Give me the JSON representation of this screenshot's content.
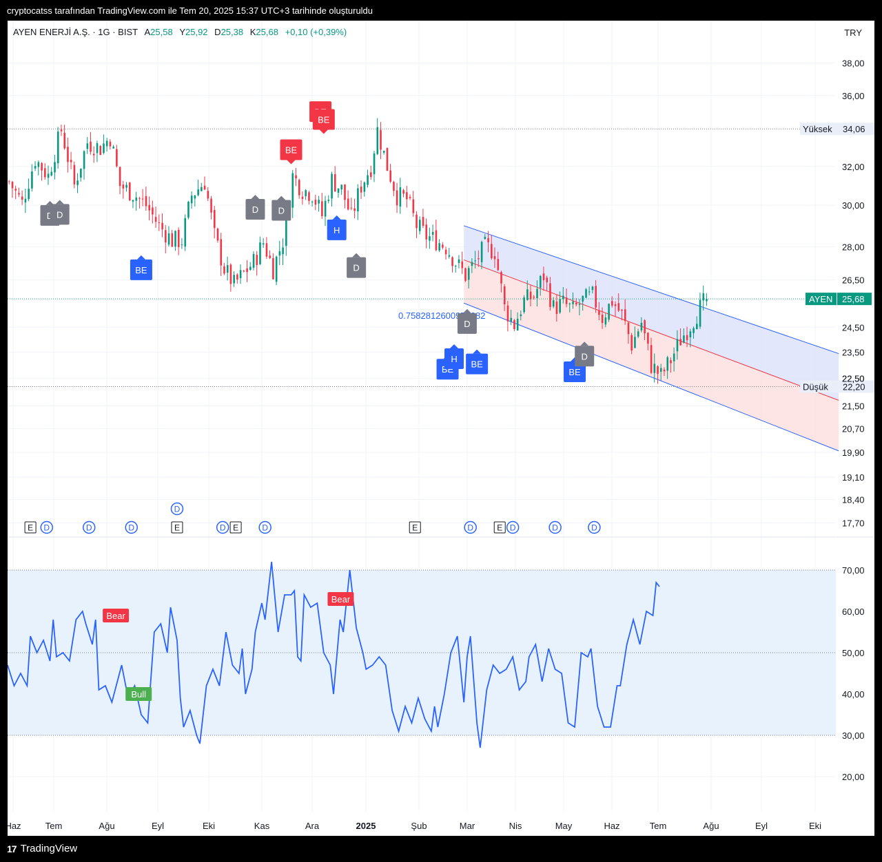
{
  "header": {
    "caption": "cryptocatss tarafından TradingView.com ile Tem 20, 2025 15:37 UTC+3 tarihinde oluşturuldu"
  },
  "legend": {
    "symbol": "AYEN ENERJİ A.Ş. · 1G · BIST",
    "open_label": "A",
    "open_value": "25,58",
    "high_label": "Y",
    "high_value": "25,92",
    "low_label": "D",
    "low_value": "25,38",
    "close_label": "K",
    "close_value": "25,68",
    "change": "+0,10 (+0,39%)"
  },
  "currency": "TRY",
  "footer": {
    "brand": "TradingView",
    "logo": "17"
  },
  "colors": {
    "up": "#089981",
    "down": "#f23645",
    "rsi": "#2962ff",
    "channel_upper_fill": "#dde3fb",
    "channel_lower_fill": "#fde2e2",
    "rsi_band": "#e8f2fd",
    "label_red": "#f23645",
    "label_blue": "#2962ff",
    "label_gray": "#787b86",
    "label_green": "#4caf50"
  },
  "chart_data": [
    {
      "type": "candlestick",
      "title": "AYEN ENERJİ A.Ş. · 1G · BIST",
      "y_axis": {
        "scale": "log",
        "ticks": [
          "38,00",
          "36,00",
          "32,00",
          "30,00",
          "28,00",
          "26,50",
          "24,50",
          "23,50",
          "22,50",
          "21,50",
          "20,70",
          "19,90",
          "19,10",
          "18,40",
          "17,70"
        ],
        "tick_values": [
          38,
          36,
          32,
          30,
          28,
          26.5,
          24.5,
          23.5,
          22.5,
          21.5,
          20.7,
          19.9,
          19.1,
          18.4,
          17.7
        ]
      },
      "x_axis": {
        "ticks": [
          "Haz",
          "Tem",
          "Ağu",
          "Eyl",
          "Eki",
          "Kas",
          "Ara",
          "2025",
          "Şub",
          "Mar",
          "Nis",
          "May",
          "Haz",
          "Tem",
          "Ağu",
          "Eyl",
          "Eki"
        ]
      },
      "date_range": [
        "2024-06-01",
        "2025-07-18"
      ],
      "price_path": [
        [
          0,
          31.2
        ],
        [
          4,
          30.1
        ],
        [
          8,
          32.4
        ],
        [
          12,
          31.5
        ],
        [
          16,
          34.0
        ],
        [
          20,
          31.0
        ],
        [
          24,
          33.3
        ],
        [
          28,
          33.0
        ],
        [
          31,
          33.6
        ],
        [
          34,
          31.0
        ],
        [
          38,
          30.6
        ],
        [
          42,
          30.0
        ],
        [
          46,
          29.0
        ],
        [
          50,
          28.3
        ],
        [
          53,
          28.3
        ],
        [
          56,
          30.5
        ],
        [
          60,
          31.2
        ],
        [
          63,
          28.5
        ],
        [
          66,
          27.0
        ],
        [
          69,
          26.3
        ],
        [
          72,
          26.8
        ],
        [
          75,
          27.3
        ],
        [
          78,
          28.2
        ],
        [
          81,
          27.0
        ],
        [
          84,
          28.3
        ],
        [
          87,
          31.5
        ],
        [
          90,
          30.8
        ],
        [
          93,
          30.6
        ],
        [
          96,
          29.5
        ],
        [
          99,
          31.3
        ],
        [
          102,
          30.8
        ],
        [
          105,
          29.4
        ],
        [
          108,
          31.0
        ],
        [
          111,
          32.0
        ],
        [
          113,
          34.0
        ],
        [
          116,
          32.0
        ],
        [
          119,
          30.5
        ],
        [
          122,
          30.3
        ],
        [
          125,
          29.0
        ],
        [
          128,
          28.5
        ],
        [
          131,
          28.3
        ],
        [
          134,
          28.0
        ],
        [
          137,
          27.3
        ],
        [
          140,
          26.7
        ],
        [
          143,
          27.3
        ],
        [
          146,
          28.0
        ],
        [
          149,
          27.8
        ],
        [
          152,
          25.3
        ],
        [
          155,
          24.6
        ],
        [
          158,
          25.6
        ],
        [
          161,
          25.8
        ],
        [
          164,
          26.7
        ],
        [
          167,
          25.3
        ],
        [
          170,
          25.5
        ],
        [
          173,
          25.2
        ],
        [
          176,
          25.6
        ],
        [
          179,
          25.8
        ],
        [
          182,
          24.9
        ],
        [
          185,
          25.6
        ],
        [
          188,
          25.0
        ],
        [
          191,
          23.8
        ],
        [
          194,
          24.7
        ],
        [
          197,
          23.0
        ],
        [
          200,
          22.6
        ],
        [
          203,
          23.2
        ],
        [
          206,
          24.0
        ],
        [
          209,
          24.6
        ],
        [
          212,
          25.3
        ],
        [
          214,
          25.68
        ]
      ],
      "last_price": {
        "label": "AYEN",
        "value": "25,68"
      },
      "reference_lines": [
        {
          "name": "Yüksek",
          "value": "34,06",
          "level": 34.06
        },
        {
          "name": "Düşük",
          "value": "22,20",
          "level": 22.2
        }
      ],
      "hidden_tick": "22,50",
      "regression_channel": {
        "start_bar": 140,
        "end_bar": 255,
        "mid_start": 27.4,
        "mid_end": 21.7,
        "upper_start": 29.0,
        "upper_end": 23.45,
        "lower_start": 25.5,
        "lower_end": 19.95,
        "value_label": "0.7582812600975382"
      },
      "pattern_labels": [
        {
          "text": "D",
          "bar": 13,
          "price": 29.5,
          "color": "gray",
          "dir": "up"
        },
        {
          "text": "D",
          "bar": 16,
          "price": 29.55,
          "color": "gray",
          "dir": "up"
        },
        {
          "text": "BE",
          "bar": 41,
          "price": 26.95,
          "color": "blue",
          "dir": "up"
        },
        {
          "text": "D",
          "bar": 76,
          "price": 29.8,
          "color": "gray",
          "dir": "up"
        },
        {
          "text": "D",
          "bar": 84,
          "price": 29.75,
          "color": "gray",
          "dir": "up"
        },
        {
          "text": "BE",
          "bar": 87,
          "price": 32.9,
          "color": "red",
          "dir": "down"
        },
        {
          "text": "BE",
          "bar": 96,
          "price": 35.05,
          "color": "red",
          "dir": "down"
        },
        {
          "text": "BE",
          "bar": 97,
          "price": 34.6,
          "color": "red",
          "dir": "down"
        },
        {
          "text": "H",
          "bar": 101,
          "price": 28.8,
          "color": "blue",
          "dir": "up"
        },
        {
          "text": "D",
          "bar": 107,
          "price": 27.05,
          "color": "gray",
          "dir": "up"
        },
        {
          "text": "BE",
          "bar": 135,
          "price": 22.85,
          "color": "blue",
          "dir": "up"
        },
        {
          "text": "H",
          "bar": 137,
          "price": 23.25,
          "color": "blue",
          "dir": "up"
        },
        {
          "text": "BE",
          "bar": 144,
          "price": 23.05,
          "color": "blue",
          "dir": "up"
        },
        {
          "text": "D",
          "bar": 141,
          "price": 24.65,
          "color": "gray",
          "dir": "up"
        },
        {
          "text": "BE",
          "bar": 174,
          "price": 22.75,
          "color": "blue",
          "dir": "up"
        },
        {
          "text": "D",
          "bar": 177,
          "price": 23.35,
          "color": "gray",
          "dir": "up"
        }
      ],
      "events": [
        {
          "text": "E",
          "bar": 7
        },
        {
          "text": "D",
          "bar": 12
        },
        {
          "text": "D",
          "bar": 25
        },
        {
          "text": "D",
          "bar": 38
        },
        {
          "text": "E",
          "bar": 52
        },
        {
          "text": "D",
          "bar": 52,
          "row": 2
        },
        {
          "text": "D",
          "bar": 66
        },
        {
          "text": "E",
          "bar": 70
        },
        {
          "text": "D",
          "bar": 79
        },
        {
          "text": "E",
          "bar": 125
        },
        {
          "text": "D",
          "bar": 142
        },
        {
          "text": "E",
          "bar": 151
        },
        {
          "text": "D",
          "bar": 155
        },
        {
          "text": "D",
          "bar": 168
        },
        {
          "text": "D",
          "bar": 180
        }
      ]
    },
    {
      "type": "line",
      "title": "",
      "y_axis": {
        "ticks": [
          "70,00",
          "60,00",
          "50,00",
          "40,00",
          "30,00",
          "20,00"
        ],
        "tick_values": [
          70,
          60,
          50,
          40,
          30,
          20
        ],
        "band": [
          30,
          70
        ],
        "midline": 50
      },
      "series": [
        {
          "values": [
            [
              0,
              47
            ],
            [
              2,
              42
            ],
            [
              4,
              45
            ],
            [
              6,
              42
            ],
            [
              7,
              54
            ],
            [
              9,
              50
            ],
            [
              11,
              53
            ],
            [
              13,
              48
            ],
            [
              14,
              58
            ],
            [
              15,
              49
            ],
            [
              17,
              50
            ],
            [
              19,
              48
            ],
            [
              21,
              58
            ],
            [
              23,
              60
            ],
            [
              24,
              57
            ],
            [
              26,
              52
            ],
            [
              27,
              58
            ],
            [
              28,
              41
            ],
            [
              30,
              42
            ],
            [
              32,
              38
            ],
            [
              34,
              44
            ],
            [
              35,
              47
            ],
            [
              37,
              39
            ],
            [
              39,
              42
            ],
            [
              41,
              35
            ],
            [
              43,
              33
            ],
            [
              45,
              55
            ],
            [
              47,
              57
            ],
            [
              49,
              50
            ],
            [
              50,
              61
            ],
            [
              52,
              53
            ],
            [
              53,
              39
            ],
            [
              54,
              32
            ],
            [
              56,
              36
            ],
            [
              58,
              30
            ],
            [
              59,
              28
            ],
            [
              61,
              42
            ],
            [
              63,
              46
            ],
            [
              65,
              42
            ],
            [
              67,
              55
            ],
            [
              69,
              47
            ],
            [
              71,
              45
            ],
            [
              72,
              51
            ],
            [
              73,
              40
            ],
            [
              75,
              46
            ],
            [
              76,
              55
            ],
            [
              78,
              62
            ],
            [
              79,
              58
            ],
            [
              81,
              72
            ],
            [
              83,
              55
            ],
            [
              85,
              64
            ],
            [
              87,
              64
            ],
            [
              88,
              65
            ],
            [
              89,
              49
            ],
            [
              90,
              48
            ],
            [
              91,
              64
            ],
            [
              93,
              61
            ],
            [
              95,
              62
            ],
            [
              97,
              50
            ],
            [
              99,
              47
            ],
            [
              100,
              40
            ],
            [
              102,
              58
            ],
            [
              103,
              55
            ],
            [
              105,
              70
            ],
            [
              107,
              56
            ],
            [
              109,
              50
            ],
            [
              110,
              46
            ],
            [
              112,
              47
            ],
            [
              114,
              49
            ],
            [
              116,
              47
            ],
            [
              118,
              36
            ],
            [
              120,
              31
            ],
            [
              122,
              37
            ],
            [
              124,
              33
            ],
            [
              126,
              39
            ],
            [
              128,
              34
            ],
            [
              130,
              31
            ],
            [
              131,
              37
            ],
            [
              132,
              32
            ],
            [
              134,
              40
            ],
            [
              136,
              50
            ],
            [
              138,
              54
            ],
            [
              140,
              38
            ],
            [
              141,
              49
            ],
            [
              142,
              54
            ],
            [
              144,
              33
            ],
            [
              145,
              27
            ],
            [
              147,
              41
            ],
            [
              149,
              47
            ],
            [
              151,
              45
            ],
            [
              153,
              46
            ],
            [
              155,
              49
            ],
            [
              157,
              41
            ],
            [
              159,
              43
            ],
            [
              160,
              49
            ],
            [
              162,
              52
            ],
            [
              164,
              43
            ],
            [
              166,
              51
            ],
            [
              168,
              46
            ],
            [
              170,
              45
            ],
            [
              172,
              33
            ],
            [
              174,
              32
            ],
            [
              176,
              50
            ],
            [
              178,
              49
            ],
            [
              179,
              51
            ],
            [
              181,
              37
            ],
            [
              183,
              32
            ],
            [
              185,
              32
            ],
            [
              187,
              42
            ],
            [
              188,
              42
            ],
            [
              190,
              52
            ],
            [
              192,
              58
            ],
            [
              194,
              52
            ],
            [
              196,
              60
            ],
            [
              198,
              59
            ],
            [
              199,
              67
            ],
            [
              200,
              66
            ]
          ]
        }
      ],
      "signals": [
        {
          "text": "Bear",
          "bar": 33,
          "value": 59,
          "color": "red"
        },
        {
          "text": "Bull",
          "bar": 40,
          "value": 40,
          "color": "green"
        },
        {
          "text": "Bear",
          "bar": 102,
          "value": 63,
          "color": "red"
        }
      ]
    }
  ]
}
